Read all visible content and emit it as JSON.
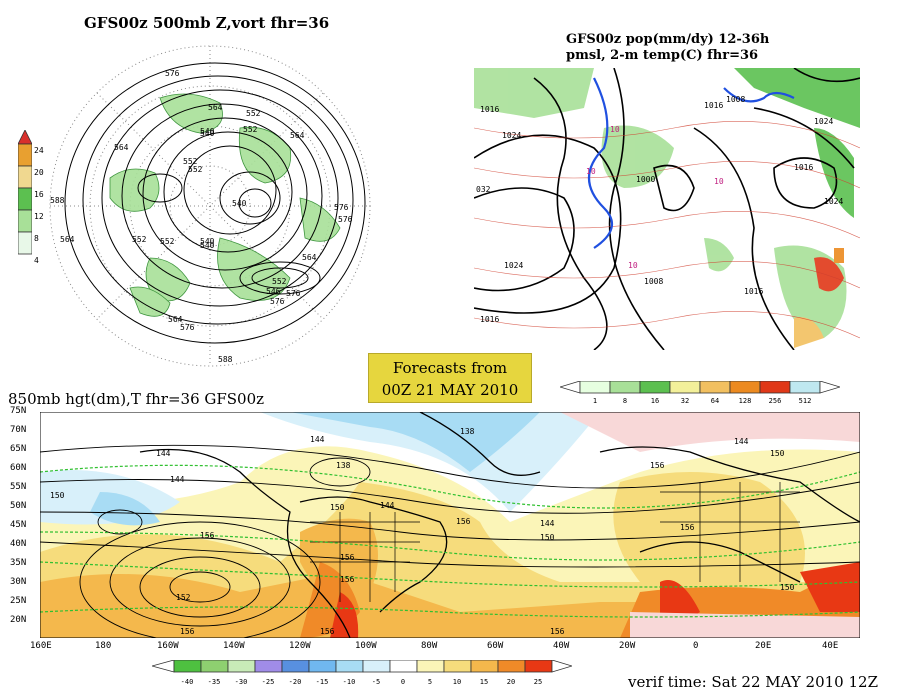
{
  "panels": {
    "polar": {
      "title": "GFS00z   500mb  Z,vort     fhr=36",
      "labels": [
        "576",
        "564",
        "552",
        "540",
        "552",
        "540",
        "564",
        "576",
        "552",
        "564",
        "540",
        "552",
        "576",
        "564",
        "552",
        "576",
        "576",
        "564",
        "588",
        "576",
        "588",
        "564",
        "552",
        "540",
        "546",
        "540",
        "552"
      ]
    },
    "precip": {
      "title_line1": "GFS00z pop(mm/dy) 12-36h",
      "title_line2": "pmsl, 2-m temp(C)   fhr=36",
      "labels": [
        "1016",
        "1024",
        "032",
        "1024",
        "1016",
        "1008",
        "1000",
        "1008",
        "1016",
        "1024",
        "1016",
        "10",
        "10",
        "10",
        "10",
        "1024",
        "1016"
      ]
    },
    "h850": {
      "title": "850mb hgt(dm),T   fhr=36 GFS00z",
      "lat_labels": [
        "75N",
        "70N",
        "65N",
        "60N",
        "55N",
        "50N",
        "45N",
        "40N",
        "35N",
        "30N",
        "25N",
        "20N"
      ],
      "lon_labels": [
        "160E",
        "180",
        "160W",
        "140W",
        "120W",
        "100W",
        "80W",
        "60W",
        "40W",
        "20W",
        "0",
        "20E",
        "40E"
      ],
      "contour_labels": [
        "144",
        "144",
        "150",
        "156",
        "152",
        "156",
        "138",
        "144",
        "150",
        "156",
        "144",
        "156",
        "150",
        "156",
        "156",
        "138",
        "144",
        "150",
        "156",
        "156",
        "150",
        "144",
        "156"
      ]
    }
  },
  "banner": {
    "line1": "Forecasts from",
    "line2": "00Z 21 MAY 2010"
  },
  "left_colorbar": {
    "ticks": [
      "24",
      "20",
      "16",
      "12",
      "8",
      "4"
    ],
    "colors": [
      "#d8302c",
      "#e8a030",
      "#f0d890",
      "#5cc050",
      "#a8e098",
      "#e8f8e8"
    ]
  },
  "precip_colorbar": {
    "ticks": [
      "1",
      "8",
      "16",
      "32",
      "64",
      "128",
      "256",
      "512"
    ],
    "colors": [
      "#e6ffe0",
      "#a8e098",
      "#5cc050",
      "#f3f09a",
      "#f2c060",
      "#ec8a20",
      "#e03818",
      "#bfe8f0"
    ]
  },
  "temp_colorbar": {
    "ticks": [
      "-40",
      "-35",
      "-30",
      "-25",
      "-20",
      "-15",
      "-10",
      "-5",
      "0",
      "5",
      "10",
      "15",
      "20",
      "25"
    ],
    "colors": [
      "#4ec040",
      "#8ed070",
      "#c8ebb8",
      "#a08ce8",
      "#5890e0",
      "#70b8f0",
      "#a8dcf4",
      "#d8f0fa",
      "#ffffff",
      "#fbf5b8",
      "#f6dc7c",
      "#f4b84c",
      "#f08a28",
      "#e83814"
    ]
  },
  "verif_text": "verif time: Sat 22 MAY 2010 12Z",
  "colors": {
    "land_warm": "#f4b84c",
    "land_hot": "#f08a28",
    "cold_blue": "#a8dcf4",
    "sea_yellow": "#fbf5b8",
    "contour": "#000000",
    "isotherm": "#30c030"
  }
}
